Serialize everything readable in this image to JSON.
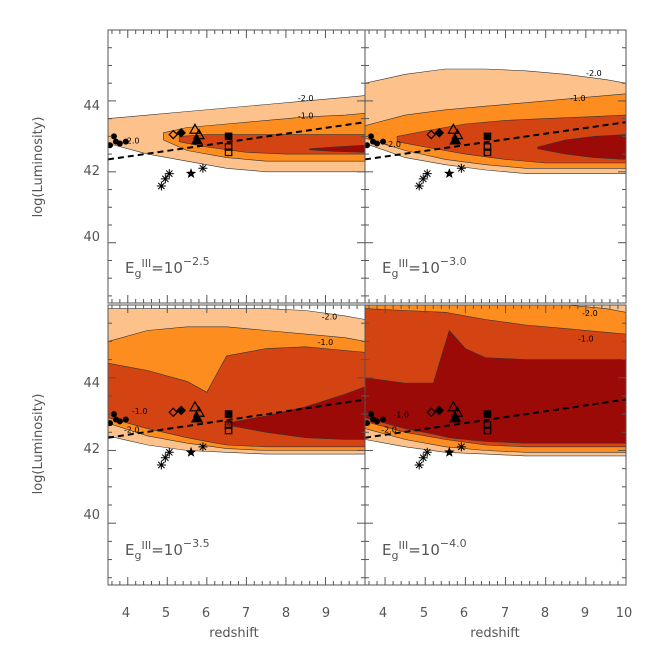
{
  "chart_data": {
    "type": "area",
    "x_label": "redshift",
    "y_label": "log(Luminosity)",
    "xlim": [
      3.5,
      10
    ],
    "ylim": [
      38.3,
      46
    ],
    "x_ticks": [
      4,
      5,
      6,
      7,
      8,
      9,
      10
    ],
    "y_ticks": [
      40,
      42,
      44
    ],
    "colors": {
      "level_minus2": "#fdc28c",
      "level_minus1": "#fd8d1e",
      "level_mid": "#d44312",
      "level_peak": "#9c0a08"
    },
    "panels": [
      {
        "label_base": "E",
        "label_sub": "g",
        "label_sup": "III",
        "label_eq": "=10",
        "label_exp": "−2.5",
        "contour_labels": [
          "-2.0",
          "-1.0",
          "-2.0"
        ],
        "bands": [
          {
            "level": "minus2",
            "x": [
              3.5,
              4.5,
              5.5,
              6.5,
              7.5,
              8.5,
              9.5,
              10
            ],
            "upper": [
              43.5,
              43.6,
              43.7,
              43.8,
              43.9,
              44.0,
              44.1,
              44.15
            ],
            "lower": [
              42.8,
              42.5,
              42.3,
              42.1,
              42.0,
              42.0,
              42.0,
              42.0
            ]
          },
          {
            "level": "minus1",
            "x": [
              4.9,
              5.5,
              6.5,
              7.5,
              8.5,
              9.5,
              10
            ],
            "upper": [
              43.1,
              43.25,
              43.35,
              43.45,
              43.55,
              43.6,
              43.65
            ],
            "lower": [
              42.9,
              42.6,
              42.4,
              42.3,
              42.3,
              42.3,
              42.3
            ]
          },
          {
            "level": "mid",
            "x": [
              5.3,
              6,
              7,
              8,
              9,
              10
            ],
            "upper": [
              43.0,
              43.05,
              43.05,
              43.05,
              43.05,
              43.05
            ],
            "lower": [
              42.85,
              42.7,
              42.55,
              42.5,
              42.5,
              42.5
            ]
          },
          {
            "level": "peak",
            "x": [
              8.6,
              9.2,
              10
            ],
            "upper": [
              42.65,
              42.7,
              42.75
            ],
            "lower": [
              42.62,
              42.58,
              42.55
            ]
          }
        ]
      },
      {
        "label_base": "E",
        "label_sub": "g",
        "label_sup": "III",
        "label_eq": "=10",
        "label_exp": "−3.0",
        "contour_labels": [
          "-2.0",
          "-1.0",
          "-2.0"
        ],
        "bands": [
          {
            "level": "minus2",
            "x": [
              3.5,
              4.5,
              5.5,
              6.5,
              7.5,
              8.5,
              9.5,
              10
            ],
            "upper": [
              44.5,
              44.75,
              44.9,
              44.9,
              44.85,
              44.75,
              44.6,
              44.5
            ],
            "lower": [
              42.8,
              42.4,
              42.2,
              42.05,
              41.95,
              41.95,
              41.95,
              41.95
            ]
          },
          {
            "level": "minus1",
            "x": [
              3.5,
              4.5,
              5.5,
              6.5,
              7.5,
              8.5,
              9.5,
              10
            ],
            "upper": [
              43.3,
              43.6,
              43.75,
              43.85,
              43.95,
              44.05,
              44.15,
              44.2
            ],
            "lower": [
              42.95,
              42.6,
              42.35,
              42.2,
              42.1,
              42.1,
              42.1,
              42.1
            ]
          },
          {
            "level": "mid",
            "x": [
              4.3,
              5,
              6,
              7,
              8,
              9,
              10
            ],
            "upper": [
              43.0,
              43.15,
              43.35,
              43.45,
              43.5,
              43.55,
              43.6
            ],
            "lower": [
              42.85,
              42.7,
              42.5,
              42.35,
              42.25,
              42.25,
              42.25
            ]
          },
          {
            "level": "peak",
            "x": [
              7.8,
              8.5,
              9.2,
              10
            ],
            "upper": [
              42.7,
              42.9,
              43.0,
              43.05
            ],
            "lower": [
              42.65,
              42.5,
              42.4,
              42.35
            ]
          }
        ]
      },
      {
        "label_base": "E",
        "label_sub": "g",
        "label_sup": "III",
        "label_eq": "=10",
        "label_exp": "−3.5",
        "contour_labels": [
          "-2.0",
          "-1.0",
          "-1.0",
          "-2.0"
        ],
        "bands": [
          {
            "level": "minus2",
            "x": [
              3.5,
              4.5,
              5.5,
              6.5,
              7.5,
              8.5,
              9.5,
              10
            ],
            "upper": [
              45.9,
              45.9,
              45.9,
              45.9,
              45.9,
              45.85,
              45.7,
              45.6
            ],
            "lower": [
              42.4,
              42.15,
              42.0,
              41.95,
              41.9,
              41.9,
              41.9,
              41.9
            ]
          },
          {
            "level": "minus1",
            "x": [
              3.5,
              4.5,
              5.5,
              6.5,
              7.5,
              8.5,
              9.5,
              10
            ],
            "upper": [
              45.0,
              45.3,
              45.4,
              45.4,
              45.3,
              45.2,
              45.1,
              45.0
            ],
            "lower": [
              42.75,
              42.4,
              42.2,
              42.05,
              42.0,
              42.0,
              42.0,
              42.0
            ]
          },
          {
            "level": "mid",
            "x": [
              3.5,
              4.5,
              5.5,
              6,
              6.5,
              7.5,
              8.5,
              9.5,
              10
            ],
            "upper": [
              44.4,
              44.2,
              43.9,
              43.6,
              44.6,
              44.8,
              44.85,
              44.75,
              44.7
            ],
            "lower": [
              42.9,
              42.6,
              42.35,
              42.25,
              42.15,
              42.1,
              42.1,
              42.1,
              42.1
            ]
          },
          {
            "level": "peak",
            "x": [
              6.5,
              7.5,
              8.5,
              9.5,
              10
            ],
            "upper": [
              42.75,
              42.95,
              43.2,
              43.55,
              43.75
            ],
            "lower": [
              42.7,
              42.5,
              42.35,
              42.3,
              42.3
            ]
          }
        ]
      },
      {
        "label_base": "E",
        "label_sub": "g",
        "label_sup": "III",
        "label_eq": "=10",
        "label_exp": "−4.0",
        "contour_labels": [
          "-2.0",
          "-1.0",
          "-1.0",
          "-2.0"
        ],
        "bands": [
          {
            "level": "minus2",
            "x": [
              3.5,
              4.5,
              5.5,
              6.5,
              7.5,
              8.5,
              9.5,
              10
            ],
            "upper": [
              46,
              46,
              46,
              46,
              46,
              46,
              46,
              46
            ],
            "lower": [
              42.3,
              42.1,
              41.95,
              41.9,
              41.85,
              41.85,
              41.85,
              41.85
            ]
          },
          {
            "level": "minus1",
            "x": [
              3.5,
              4.5,
              5.5,
              6.5,
              7.5,
              8.5,
              9.5,
              10
            ],
            "upper": [
              46,
              46,
              46,
              46,
              46,
              46,
              45.9,
              45.8
            ],
            "lower": [
              42.6,
              42.3,
              42.1,
              42.0,
              41.95,
              41.95,
              41.95,
              41.95
            ]
          },
          {
            "level": "mid",
            "x": [
              3.5,
              4.5,
              5.5,
              6.5,
              7.5,
              8.5,
              9.5,
              10
            ],
            "upper": [
              45.9,
              45.85,
              45.8,
              45.6,
              45.45,
              45.35,
              45.25,
              45.2
            ],
            "lower": [
              42.8,
              42.5,
              42.3,
              42.15,
              42.1,
              42.1,
              42.1,
              42.1
            ]
          },
          {
            "level": "peak",
            "x": [
              3.5,
              4.5,
              5.2,
              5.6,
              6,
              6.5,
              7.5,
              8.5,
              9.5,
              10
            ],
            "upper": [
              44.0,
              43.85,
              43.85,
              45.3,
              44.8,
              44.55,
              44.5,
              44.5,
              44.5,
              44.5
            ],
            "lower": [
              42.9,
              42.6,
              42.45,
              42.35,
              42.3,
              42.25,
              42.2,
              42.2,
              42.2,
              42.2
            ]
          }
        ]
      }
    ],
    "dashed_line": {
      "x": [
        3.5,
        10
      ],
      "y": [
        42.35,
        43.4
      ]
    },
    "observations": [
      {
        "marker": "circle",
        "points": [
          [
            3.55,
            42.75
          ],
          [
            3.65,
            43.0
          ],
          [
            3.7,
            42.85
          ],
          [
            3.8,
            42.8
          ],
          [
            3.95,
            42.85
          ]
        ]
      },
      {
        "marker": "asterisk",
        "points": [
          [
            4.85,
            41.6
          ],
          [
            4.95,
            41.8
          ],
          [
            5.05,
            41.95
          ],
          [
            5.9,
            42.1
          ]
        ]
      },
      {
        "marker": "diamond-open",
        "points": [
          [
            5.15,
            43.05
          ]
        ]
      },
      {
        "marker": "diamond-filled",
        "points": [
          [
            5.35,
            43.1
          ]
        ]
      },
      {
        "marker": "triangle-open",
        "points": [
          [
            5.7,
            43.2
          ],
          [
            5.8,
            43.05
          ]
        ]
      },
      {
        "marker": "triangle-filled",
        "points": [
          [
            5.75,
            42.9
          ]
        ]
      },
      {
        "marker": "star-filled",
        "points": [
          [
            5.6,
            41.95
          ]
        ]
      },
      {
        "marker": "square-filled",
        "points": [
          [
            6.55,
            43.0
          ]
        ]
      },
      {
        "marker": "square-open",
        "points": [
          [
            6.55,
            42.7
          ],
          [
            6.55,
            42.55
          ]
        ]
      }
    ]
  }
}
